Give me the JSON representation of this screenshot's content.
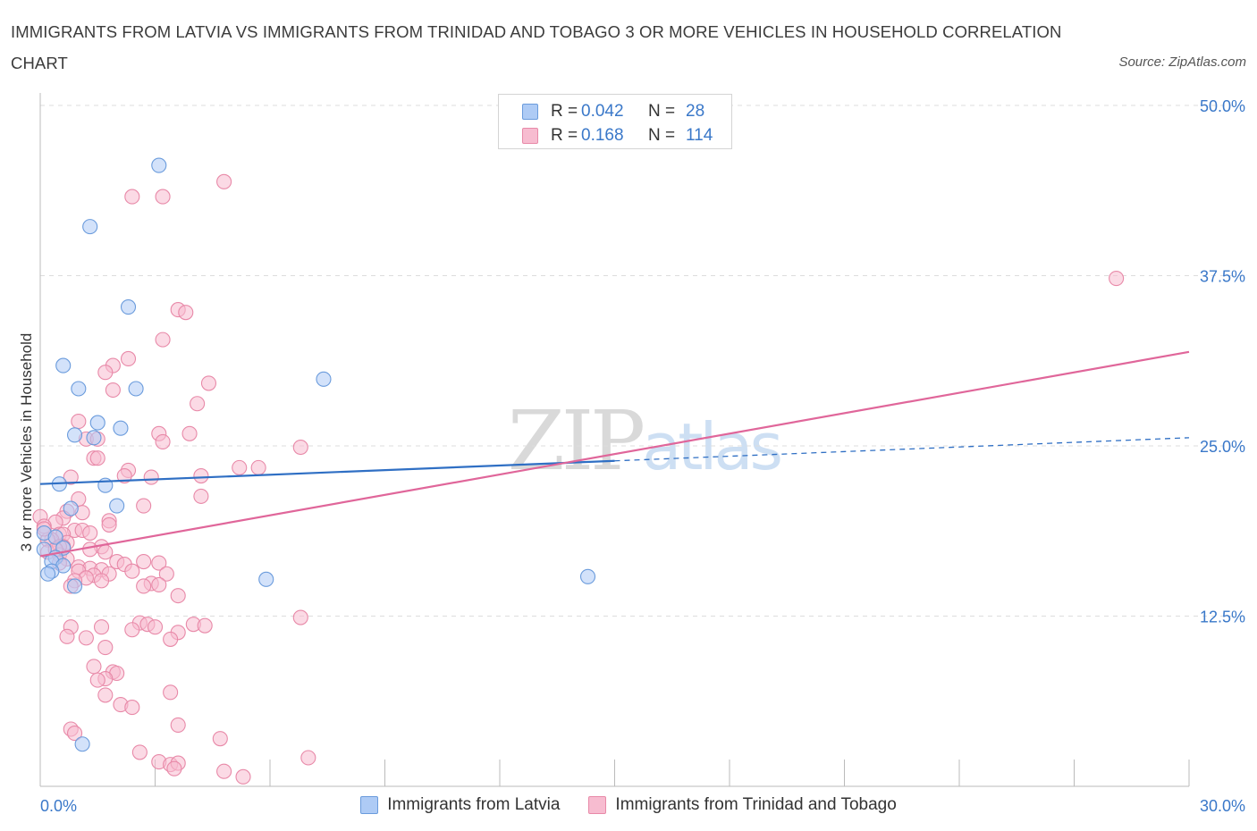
{
  "title": "IMMIGRANTS FROM LATVIA VS IMMIGRANTS FROM TRINIDAD AND TOBAGO 3 OR MORE VEHICLES IN HOUSEHOLD CORRELATION CHART",
  "source": "Source: ZipAtlas.com",
  "watermark": "ZIPatlas",
  "legend": {
    "rows": [
      {
        "r_label": "R =",
        "r_value": "0.042",
        "n_label": "N =",
        "n_value": "28"
      },
      {
        "r_label": "R =",
        "r_value": "0.168",
        "n_label": "N =",
        "n_value": "114"
      }
    ]
  },
  "colors": {
    "latvia_fill": "#aecbf5",
    "latvia_stroke": "#6a9bdc",
    "latvia_line": "#2f6fc4",
    "tt_fill": "#f7bcd0",
    "tt_stroke": "#e889a8",
    "tt_line": "#e0669a",
    "tick_text": "#3a78c9",
    "grid": "#dddddd"
  },
  "chart_data": {
    "type": "scatter",
    "title": "IMMIGRANTS FROM LATVIA VS IMMIGRANTS FROM TRINIDAD AND TOBAGO 3 OR MORE VEHICLES IN HOUSEHOLD CORRELATION CHART",
    "xlabel": "",
    "ylabel": "3 or more Vehicles in Household",
    "xlim": [
      0,
      30
    ],
    "ylim": [
      0,
      50
    ],
    "x_tick_labels": [
      "0.0%",
      "30.0%"
    ],
    "y_ticks": [
      12.5,
      25.0,
      37.5,
      50.0
    ],
    "y_tick_labels": [
      "12.5%",
      "25.0%",
      "37.5%",
      "50.0%"
    ],
    "legend_position": "bottom-center",
    "series": [
      {
        "name": "Immigrants from Latvia",
        "R": 0.042,
        "N": 28,
        "trend": {
          "x0": 0,
          "y0": 22.2,
          "x1": 15,
          "y1": 23.9,
          "dashed_to_x": 30,
          "dashed_to_y": 25.6
        },
        "points": [
          [
            3.1,
            45.6
          ],
          [
            1.3,
            41.1
          ],
          [
            2.3,
            35.2
          ],
          [
            0.6,
            30.9
          ],
          [
            1.0,
            29.2
          ],
          [
            2.5,
            29.2
          ],
          [
            7.4,
            29.9
          ],
          [
            1.5,
            26.7
          ],
          [
            2.1,
            26.3
          ],
          [
            0.9,
            25.8
          ],
          [
            1.4,
            25.6
          ],
          [
            0.5,
            22.2
          ],
          [
            1.7,
            22.1
          ],
          [
            2.0,
            20.6
          ],
          [
            0.8,
            20.4
          ],
          [
            0.1,
            18.6
          ],
          [
            0.4,
            18.3
          ],
          [
            0.6,
            17.5
          ],
          [
            0.1,
            17.4
          ],
          [
            0.4,
            16.8
          ],
          [
            0.3,
            16.5
          ],
          [
            0.6,
            16.2
          ],
          [
            0.3,
            15.8
          ],
          [
            0.2,
            15.6
          ],
          [
            0.9,
            14.7
          ],
          [
            5.9,
            15.2
          ],
          [
            14.3,
            15.4
          ],
          [
            1.1,
            3.1
          ]
        ]
      },
      {
        "name": "Immigrants from Trinidad and Tobago",
        "R": 0.168,
        "N": 114,
        "trend": {
          "x0": 0,
          "y0": 16.9,
          "x1": 30,
          "y1": 31.9
        },
        "points": [
          [
            4.8,
            44.4
          ],
          [
            2.4,
            43.3
          ],
          [
            3.2,
            43.3
          ],
          [
            28.1,
            37.3
          ],
          [
            3.6,
            35.0
          ],
          [
            3.8,
            34.8
          ],
          [
            3.2,
            32.8
          ],
          [
            2.3,
            31.4
          ],
          [
            1.9,
            30.9
          ],
          [
            1.7,
            30.4
          ],
          [
            4.4,
            29.6
          ],
          [
            1.9,
            29.1
          ],
          [
            4.1,
            28.1
          ],
          [
            1.0,
            26.8
          ],
          [
            3.1,
            25.9
          ],
          [
            3.9,
            25.9
          ],
          [
            3.2,
            25.3
          ],
          [
            1.2,
            25.5
          ],
          [
            1.5,
            25.5
          ],
          [
            6.8,
            24.9
          ],
          [
            1.4,
            24.1
          ],
          [
            1.5,
            24.1
          ],
          [
            5.2,
            23.4
          ],
          [
            5.7,
            23.4
          ],
          [
            2.3,
            23.2
          ],
          [
            4.2,
            22.8
          ],
          [
            0.8,
            22.7
          ],
          [
            2.2,
            22.8
          ],
          [
            2.9,
            22.7
          ],
          [
            1.0,
            21.1
          ],
          [
            4.2,
            21.3
          ],
          [
            2.7,
            20.6
          ],
          [
            0.7,
            20.2
          ],
          [
            1.1,
            20.1
          ],
          [
            0.0,
            19.8
          ],
          [
            0.6,
            19.7
          ],
          [
            0.4,
            19.4
          ],
          [
            0.1,
            19.1
          ],
          [
            1.8,
            19.5
          ],
          [
            1.8,
            19.2
          ],
          [
            0.9,
            18.8
          ],
          [
            1.1,
            18.8
          ],
          [
            1.3,
            18.6
          ],
          [
            0.5,
            18.5
          ],
          [
            0.6,
            18.5
          ],
          [
            0.3,
            18.1
          ],
          [
            0.2,
            18.1
          ],
          [
            0.7,
            17.9
          ],
          [
            0.6,
            17.6
          ],
          [
            0.5,
            17.6
          ],
          [
            1.6,
            17.6
          ],
          [
            1.3,
            17.4
          ],
          [
            1.7,
            17.2
          ],
          [
            0.2,
            17.2
          ],
          [
            0.5,
            17.0
          ],
          [
            0.7,
            16.7
          ],
          [
            2.0,
            16.5
          ],
          [
            2.7,
            16.5
          ],
          [
            3.1,
            16.4
          ],
          [
            0.5,
            16.4
          ],
          [
            2.2,
            16.3
          ],
          [
            1.0,
            16.1
          ],
          [
            1.3,
            16.0
          ],
          [
            1.0,
            15.8
          ],
          [
            1.6,
            15.9
          ],
          [
            2.4,
            15.8
          ],
          [
            1.8,
            15.6
          ],
          [
            1.4,
            15.5
          ],
          [
            1.2,
            15.3
          ],
          [
            0.9,
            15.1
          ],
          [
            1.6,
            15.1
          ],
          [
            2.9,
            14.9
          ],
          [
            3.3,
            15.6
          ],
          [
            3.1,
            14.8
          ],
          [
            0.8,
            14.7
          ],
          [
            2.7,
            14.7
          ],
          [
            3.6,
            14.0
          ],
          [
            6.8,
            12.4
          ],
          [
            2.6,
            12.0
          ],
          [
            1.6,
            11.7
          ],
          [
            2.8,
            11.9
          ],
          [
            4.0,
            11.9
          ],
          [
            3.0,
            11.7
          ],
          [
            4.3,
            11.8
          ],
          [
            0.8,
            11.7
          ],
          [
            2.4,
            11.5
          ],
          [
            3.6,
            11.3
          ],
          [
            0.7,
            11.0
          ],
          [
            1.2,
            10.9
          ],
          [
            3.4,
            10.8
          ],
          [
            1.7,
            10.2
          ],
          [
            1.4,
            8.8
          ],
          [
            1.9,
            8.4
          ],
          [
            2.0,
            8.3
          ],
          [
            1.7,
            7.9
          ],
          [
            1.5,
            7.8
          ],
          [
            3.4,
            6.9
          ],
          [
            1.7,
            6.7
          ],
          [
            2.1,
            6.0
          ],
          [
            2.4,
            5.8
          ],
          [
            3.6,
            4.5
          ],
          [
            0.8,
            4.2
          ],
          [
            4.7,
            3.5
          ],
          [
            0.9,
            3.9
          ],
          [
            2.6,
            2.5
          ],
          [
            7.0,
            2.1
          ],
          [
            3.1,
            1.8
          ],
          [
            3.4,
            1.6
          ],
          [
            3.6,
            1.7
          ],
          [
            3.5,
            1.3
          ],
          [
            4.8,
            1.1
          ],
          [
            5.3,
            0.7
          ],
          [
            0.4,
            17.4
          ],
          [
            0.1,
            18.9
          ]
        ]
      }
    ]
  }
}
